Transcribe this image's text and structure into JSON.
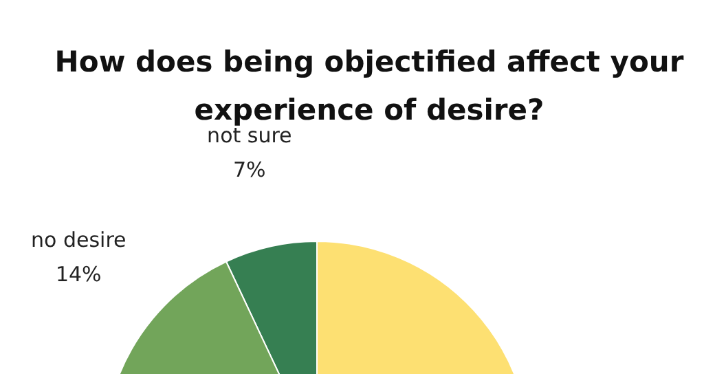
{
  "chart_data": {
    "type": "pie",
    "title": "How does being objectified affect your experience of desire?",
    "categories": [
      "not sure",
      "no desire",
      null
    ],
    "values": [
      7,
      14,
      79
    ],
    "value_labels": [
      "7%",
      "14%",
      null
    ],
    "colors": [
      "#367f52",
      "#72a55a",
      "#fde072"
    ]
  }
}
